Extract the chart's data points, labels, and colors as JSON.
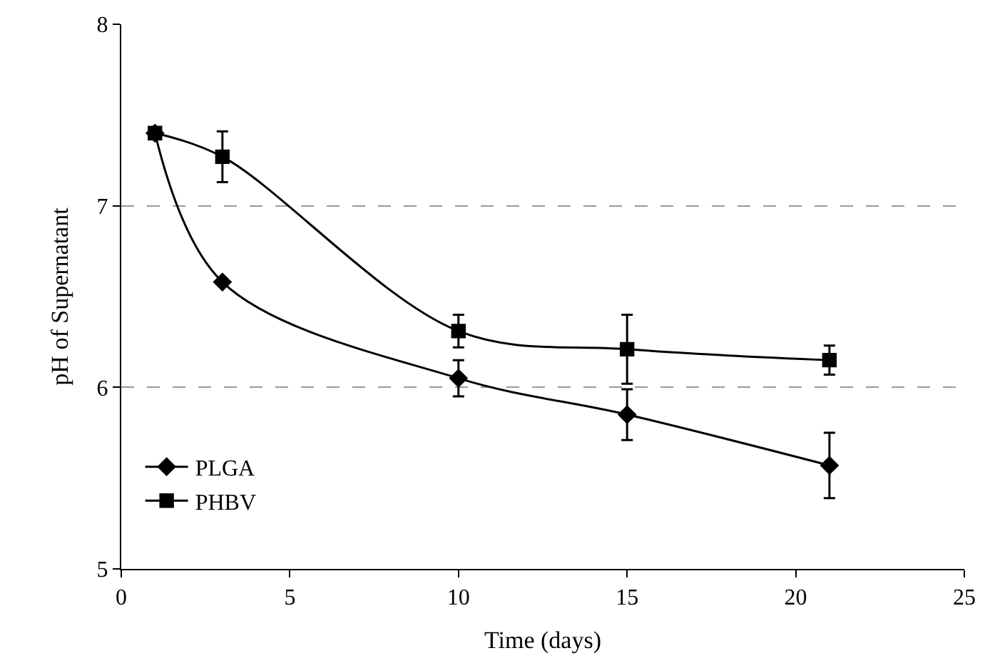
{
  "chart_data": {
    "type": "line",
    "xlabel": "Time (days)",
    "ylabel": "pH of Supernatant",
    "xlim": [
      0,
      25
    ],
    "xticks": [
      0,
      5,
      10,
      15,
      20,
      25
    ],
    "ylim": [
      5,
      8
    ],
    "yticks": [
      5,
      6,
      7,
      8
    ],
    "grid": "y",
    "legend": "bottom left",
    "series": [
      {
        "name": "PLGA",
        "color": "#000000",
        "marker": "diamond",
        "x": [
          1,
          3,
          10,
          15,
          21
        ],
        "values": [
          7.4,
          6.58,
          6.05,
          5.85,
          5.57
        ],
        "errors": [
          null,
          null,
          0.1,
          0.14,
          0.18
        ]
      },
      {
        "name": "PHBV",
        "color": "#000000",
        "marker": "square",
        "x": [
          1,
          3,
          10,
          15,
          21
        ],
        "values": [
          7.4,
          7.27,
          6.31,
          6.21,
          6.15
        ],
        "errors": [
          null,
          0.14,
          0.09,
          0.19,
          0.08
        ]
      }
    ]
  }
}
